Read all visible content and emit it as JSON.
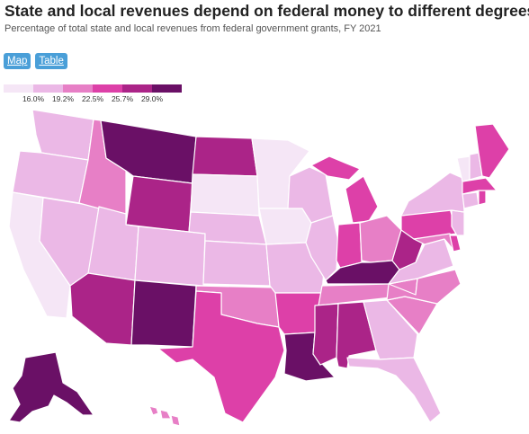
{
  "header": {
    "title": "State and local revenues depend on federal money to different degrees.",
    "subtitle": "Percentage of total state and local revenues from federal government grants, FY 2021"
  },
  "view_toggle": {
    "map_label": "Map",
    "table_label": "Table"
  },
  "legend": {
    "colors": [
      "#f5e6f6",
      "#ebb8e6",
      "#e77fc6",
      "#dd40a8",
      "#ab2488",
      "#6a1066"
    ],
    "thresholds": [
      "16.0%",
      "19.2%",
      "22.5%",
      "25.7%",
      "29.0%"
    ]
  },
  "map": {
    "bins": {
      "WA": 1,
      "OR": 1,
      "CA": 0,
      "NV": 1,
      "ID": 2,
      "MT": 5,
      "WY": 4,
      "UT": 1,
      "AZ": 4,
      "CO": 1,
      "NM": 5,
      "ND": 4,
      "SD": 0,
      "NE": 1,
      "KS": 1,
      "OK": 2,
      "TX": 3,
      "MN": 0,
      "IA": 0,
      "MO": 1,
      "AR": 3,
      "LA": 5,
      "WI": 1,
      "IL": 1,
      "MI": 3,
      "IN": 3,
      "OH": 2,
      "KY": 5,
      "TN": 2,
      "MS": 4,
      "AL": 4,
      "GA": 1,
      "FL": 1,
      "SC": 2,
      "NC": 2,
      "VA": 1,
      "WV": 4,
      "MD": 2,
      "DE": 3,
      "PA": 3,
      "NJ": 1,
      "NY": 1,
      "CT": 1,
      "RI": 3,
      "MA": 3,
      "VT": 0,
      "NH": 1,
      "ME": 3,
      "AK": 5,
      "HI": 2
    }
  }
}
